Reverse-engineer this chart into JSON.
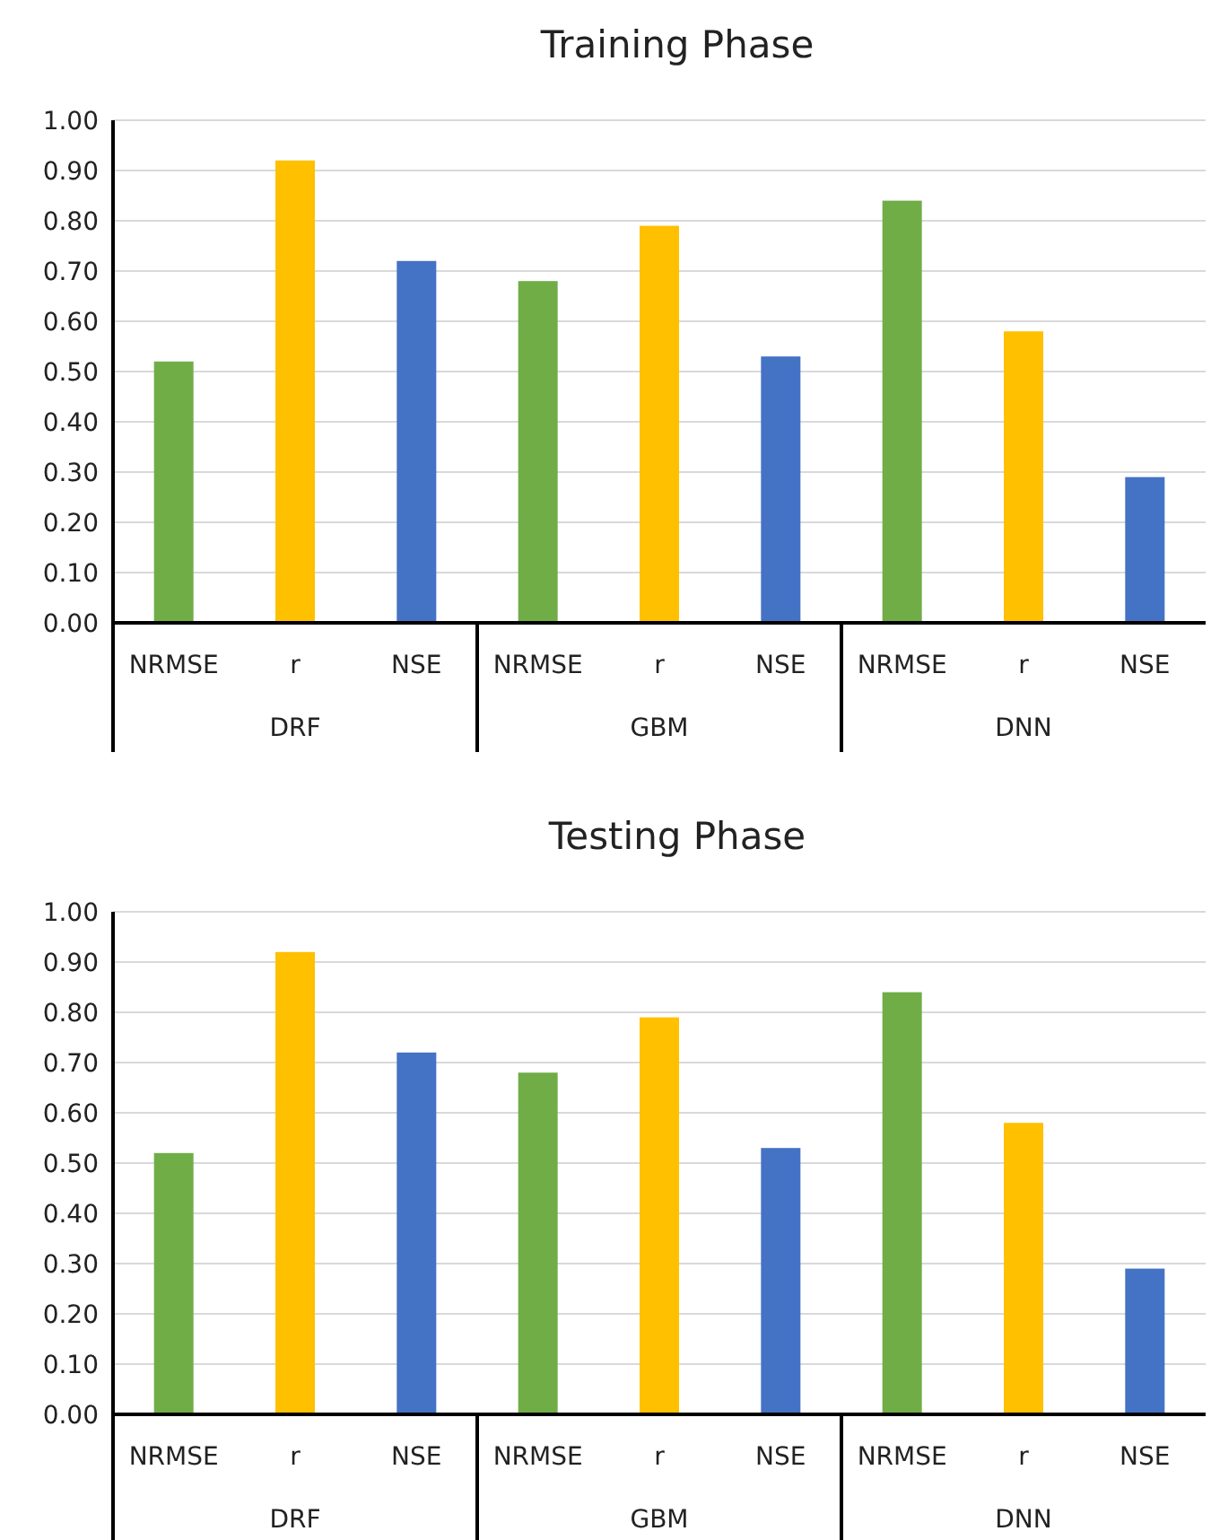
{
  "chart_data": [
    {
      "type": "bar",
      "title": "Training Phase",
      "categories": [
        "NRMSE",
        "r",
        "NSE",
        "NRMSE",
        "r",
        "NSE",
        "NRMSE",
        "r",
        "NSE"
      ],
      "values": [
        0.52,
        0.92,
        0.72,
        0.68,
        0.79,
        0.53,
        0.84,
        0.58,
        0.29
      ],
      "colors": [
        "#70ad47",
        "#ffc000",
        "#4472c4",
        "#70ad47",
        "#ffc000",
        "#4472c4",
        "#70ad47",
        "#ffc000",
        "#4472c4"
      ],
      "annotations": [
        "DRF",
        "GBM",
        "DNN"
      ],
      "ylim": [
        0,
        1
      ],
      "yticks": [
        {
          "value": 0,
          "label": "0.00"
        },
        {
          "value": 0.1,
          "label": "0.10"
        },
        {
          "value": 0.2,
          "label": "0.20"
        },
        {
          "value": 0.3,
          "label": "0.30"
        },
        {
          "value": 0.4,
          "label": "0.40"
        },
        {
          "value": 0.5,
          "label": "0.50"
        },
        {
          "value": 0.6,
          "label": "0.60"
        },
        {
          "value": 0.7,
          "label": "0.70"
        },
        {
          "value": 0.8,
          "label": "0.80"
        },
        {
          "value": 0.9,
          "label": "0.90"
        },
        {
          "value": 1,
          "label": "1.00"
        }
      ],
      "grid": "y"
    },
    {
      "type": "bar",
      "title": "Testing Phase",
      "categories": [
        "NRMSE",
        "r",
        "NSE",
        "NRMSE",
        "r",
        "NSE",
        "NRMSE",
        "r",
        "NSE"
      ],
      "values": [
        0.52,
        0.92,
        0.72,
        0.68,
        0.79,
        0.53,
        0.84,
        0.58,
        0.29
      ],
      "colors": [
        "#70ad47",
        "#ffc000",
        "#4472c4",
        "#70ad47",
        "#ffc000",
        "#4472c4",
        "#70ad47",
        "#ffc000",
        "#4472c4"
      ],
      "annotations": [
        "DRF",
        "GBM",
        "DNN"
      ],
      "ylim": [
        0,
        1
      ],
      "yticks": [
        {
          "value": 0,
          "label": "0.00"
        },
        {
          "value": 0.1,
          "label": "0.10"
        },
        {
          "value": 0.2,
          "label": "0.20"
        },
        {
          "value": 0.3,
          "label": "0.30"
        },
        {
          "value": 0.4,
          "label": "0.40"
        },
        {
          "value": 0.5,
          "label": "0.50"
        },
        {
          "value": 0.6,
          "label": "0.60"
        },
        {
          "value": 0.7,
          "label": "0.70"
        },
        {
          "value": 0.8,
          "label": "0.80"
        },
        {
          "value": 0.9,
          "label": "0.90"
        },
        {
          "value": 1,
          "label": "1.00"
        }
      ],
      "grid": "y"
    }
  ]
}
